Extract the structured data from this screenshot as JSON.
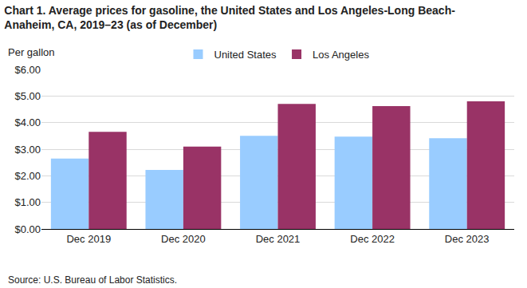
{
  "chart_data": {
    "type": "bar",
    "title": [
      "Chart 1. Average prices for gasoline, the United States and Los Angeles-Long Beach-",
      "Anaheim, CA, 2019–23 (as of December)"
    ],
    "y_label": "Per gallon",
    "note": "Source: U.S. Bureau of Labor Statistics.",
    "categories": [
      "Dec 2019",
      "Dec 2020",
      "Dec 2021",
      "Dec 2022",
      "Dec 2023"
    ],
    "series": [
      {
        "name": "United States",
        "color": "#99ccff",
        "values": [
          2.65,
          2.22,
          3.5,
          3.47,
          3.41
        ]
      },
      {
        "name": "Los Angeles",
        "color": "#993366",
        "values": [
          3.65,
          3.1,
          4.7,
          4.62,
          4.8
        ]
      }
    ],
    "ylim": [
      0,
      6
    ],
    "yticks": [
      {
        "value": 0,
        "label": "$0.00"
      },
      {
        "value": 1,
        "label": "$1.00"
      },
      {
        "value": 2,
        "label": "$2.00"
      },
      {
        "value": 3,
        "label": "$3.00"
      },
      {
        "value": 4,
        "label": "$4.00"
      },
      {
        "value": 5,
        "label": "$5.00"
      },
      {
        "value": 6,
        "label": "$6.00"
      }
    ],
    "grid": true,
    "legend": "top"
  }
}
